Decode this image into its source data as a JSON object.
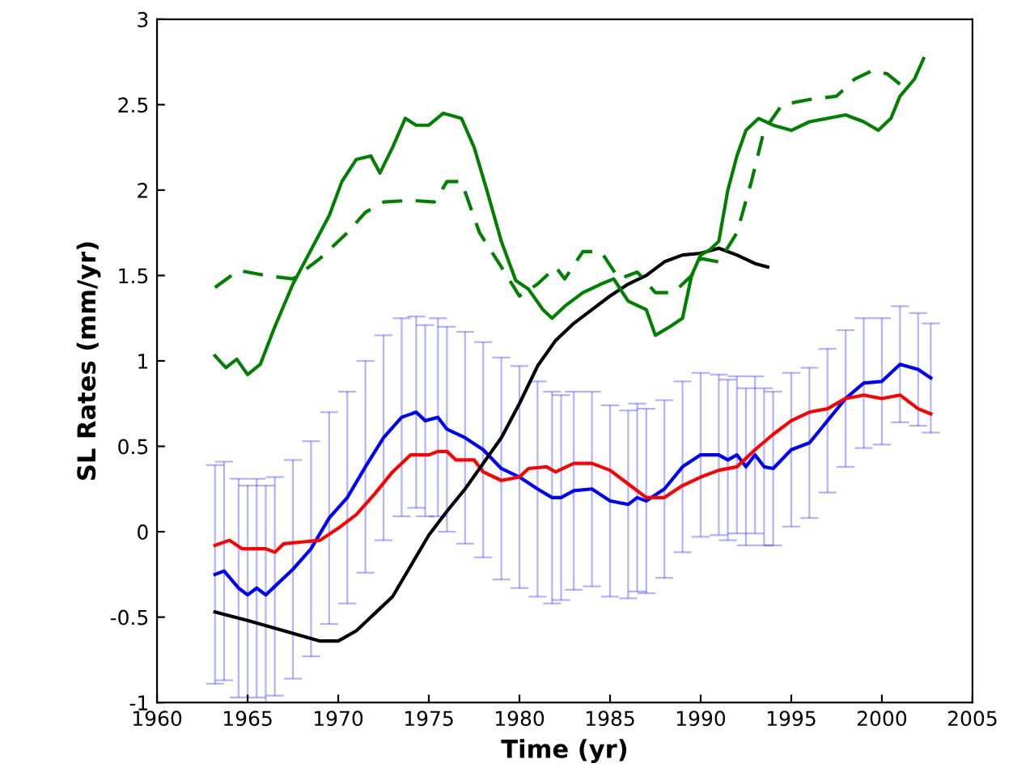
{
  "chart_data": {
    "type": "line",
    "xlabel": "Time (yr)",
    "ylabel": "SL Rates (mm/yr)",
    "xlim": [
      1960,
      2005
    ],
    "ylim": [
      -1,
      3
    ],
    "xticks": [
      1960,
      1965,
      1970,
      1975,
      1980,
      1985,
      1990,
      1995,
      2000,
      2005
    ],
    "yticks": [
      -1,
      -0.5,
      0,
      0.5,
      1,
      1.5,
      2,
      2.5,
      3
    ],
    "grid": false,
    "legend": false,
    "marker": "none",
    "series": [
      {
        "color": "#0000ff",
        "line_style": "solid",
        "x": [
          1963.2,
          1963.7,
          1964.5,
          1965,
          1965.5,
          1966,
          1966.5,
          1967.5,
          1968.5,
          1969.5,
          1970.5,
          1971.5,
          1972.5,
          1973.5,
          1974.3,
          1974.8,
          1975.5,
          1976,
          1977,
          1978,
          1979,
          1980,
          1981,
          1981.8,
          1982.3,
          1983,
          1984,
          1985,
          1986,
          1986.5,
          1987,
          1988,
          1989,
          1990,
          1991,
          1991.5,
          1992,
          1992.5,
          1993,
          1993.5,
          1994,
          1995,
          1996,
          1997,
          1998,
          1999,
          2000,
          2001,
          2002,
          2002.7
        ],
        "values": [
          -0.25,
          -0.23,
          -0.33,
          -0.37,
          -0.33,
          -0.37,
          -0.32,
          -0.22,
          -0.1,
          0.08,
          0.2,
          0.38,
          0.55,
          0.67,
          0.7,
          0.65,
          0.67,
          0.6,
          0.55,
          0.48,
          0.37,
          0.32,
          0.25,
          0.2,
          0.2,
          0.24,
          0.25,
          0.18,
          0.16,
          0.2,
          0.18,
          0.25,
          0.38,
          0.45,
          0.45,
          0.42,
          0.45,
          0.38,
          0.45,
          0.38,
          0.37,
          0.48,
          0.52,
          0.65,
          0.78,
          0.87,
          0.88,
          0.98,
          0.95,
          0.9
        ],
        "errors": [
          0.64,
          0.64,
          0.64,
          0.64,
          0.64,
          0.64,
          0.64,
          0.64,
          0.63,
          0.62,
          0.62,
          0.62,
          0.6,
          0.58,
          0.56,
          0.56,
          0.58,
          0.6,
          0.62,
          0.63,
          0.65,
          0.65,
          0.63,
          0.62,
          0.6,
          0.58,
          0.57,
          0.56,
          0.55,
          0.55,
          0.54,
          0.52,
          0.5,
          0.48,
          0.47,
          0.47,
          0.46,
          0.46,
          0.46,
          0.46,
          0.45,
          0.45,
          0.44,
          0.42,
          0.4,
          0.38,
          0.37,
          0.34,
          0.33,
          0.32
        ]
      },
      {
        "color": "#ff0000",
        "line_style": "solid",
        "x": [
          1963.2,
          1964,
          1964.7,
          1966,
          1966.5,
          1967,
          1968,
          1969,
          1970,
          1971,
          1972,
          1973,
          1974,
          1975,
          1975.5,
          1976,
          1976.5,
          1977.5,
          1978,
          1979,
          1980,
          1980.5,
          1981.5,
          1982,
          1983,
          1984,
          1985,
          1986,
          1987,
          1988,
          1989,
          1990,
          1991,
          1992,
          1993,
          1994,
          1995,
          1996,
          1997,
          1998,
          1999,
          2000,
          2001,
          2002,
          2002.7
        ],
        "values": [
          -0.08,
          -0.05,
          -0.1,
          -0.1,
          -0.12,
          -0.07,
          -0.06,
          -0.05,
          0.02,
          0.1,
          0.22,
          0.35,
          0.45,
          0.45,
          0.47,
          0.47,
          0.42,
          0.42,
          0.35,
          0.3,
          0.32,
          0.37,
          0.38,
          0.35,
          0.4,
          0.4,
          0.36,
          0.28,
          0.2,
          0.2,
          0.27,
          0.32,
          0.36,
          0.38,
          0.48,
          0.57,
          0.65,
          0.7,
          0.72,
          0.78,
          0.8,
          0.78,
          0.8,
          0.72,
          0.69
        ]
      },
      {
        "color": "#000000",
        "line_style": "solid",
        "x": [
          1963.2,
          1965,
          1967,
          1969,
          1970,
          1971,
          1972,
          1973,
          1974,
          1975,
          1976,
          1977,
          1978,
          1979,
          1980,
          1981,
          1982,
          1983,
          1984,
          1985,
          1986,
          1987,
          1988,
          1989,
          1990,
          1991,
          1992,
          1993,
          1993.7
        ],
        "values": [
          -0.47,
          -0.52,
          -0.58,
          -0.64,
          -0.64,
          -0.58,
          -0.48,
          -0.38,
          -0.2,
          -0.02,
          0.12,
          0.25,
          0.4,
          0.55,
          0.75,
          0.97,
          1.12,
          1.22,
          1.3,
          1.38,
          1.45,
          1.5,
          1.58,
          1.62,
          1.63,
          1.66,
          1.62,
          1.57,
          1.55
        ]
      },
      {
        "color": "#008000",
        "line_style": "solid",
        "x": [
          1963.2,
          1963.8,
          1964.4,
          1965,
          1965.7,
          1966.5,
          1967.5,
          1968.5,
          1969.5,
          1970.2,
          1971,
          1971.8,
          1972.3,
          1973,
          1973.7,
          1974.3,
          1975,
          1975.8,
          1976.8,
          1977.5,
          1978.2,
          1979,
          1979.8,
          1980.5,
          1981.3,
          1981.8,
          1982.5,
          1983.5,
          1984.5,
          1985.2,
          1986,
          1987,
          1987.5,
          1988.3,
          1989,
          1989.5,
          1990,
          1990.5,
          1991,
          1991.5,
          1992,
          1992.5,
          1993.2,
          1994,
          1995,
          1996,
          1997,
          1998,
          1999,
          1999.8,
          2000.5,
          2001,
          2001.8,
          2002.3
        ],
        "values": [
          1.03,
          0.96,
          1.01,
          0.92,
          0.98,
          1.2,
          1.45,
          1.65,
          1.85,
          2.05,
          2.18,
          2.2,
          2.1,
          2.25,
          2.42,
          2.38,
          2.38,
          2.45,
          2.42,
          2.25,
          2.0,
          1.7,
          1.47,
          1.42,
          1.3,
          1.25,
          1.32,
          1.4,
          1.45,
          1.48,
          1.35,
          1.3,
          1.15,
          1.2,
          1.25,
          1.5,
          1.62,
          1.65,
          1.7,
          2.0,
          2.2,
          2.35,
          2.42,
          2.38,
          2.35,
          2.4,
          2.42,
          2.44,
          2.4,
          2.35,
          2.42,
          2.55,
          2.65,
          2.77
        ]
      },
      {
        "color": "#008000",
        "line_style": "dashed",
        "x": [
          1963.2,
          1964.5,
          1966,
          1967.5,
          1969,
          1970.5,
          1971.5,
          1972.5,
          1974,
          1975.3,
          1976,
          1976.8,
          1977.8,
          1979,
          1980,
          1981,
          1982,
          1982.5,
          1983.5,
          1984.5,
          1985.5,
          1986.5,
          1987.5,
          1988.5,
          1989.5,
          1990,
          1991,
          1992,
          1992.8,
          1993.5,
          1994.5,
          1996,
          1997.5,
          1998.5,
          1999.5,
          2000.3,
          2001
        ],
        "values": [
          1.43,
          1.53,
          1.5,
          1.48,
          1.6,
          1.75,
          1.87,
          1.93,
          1.94,
          1.93,
          2.05,
          2.05,
          1.75,
          1.55,
          1.38,
          1.45,
          1.55,
          1.48,
          1.64,
          1.64,
          1.48,
          1.52,
          1.4,
          1.4,
          1.5,
          1.6,
          1.58,
          1.75,
          2.05,
          2.35,
          2.5,
          2.53,
          2.55,
          2.65,
          2.7,
          2.68,
          2.62
        ]
      }
    ]
  }
}
